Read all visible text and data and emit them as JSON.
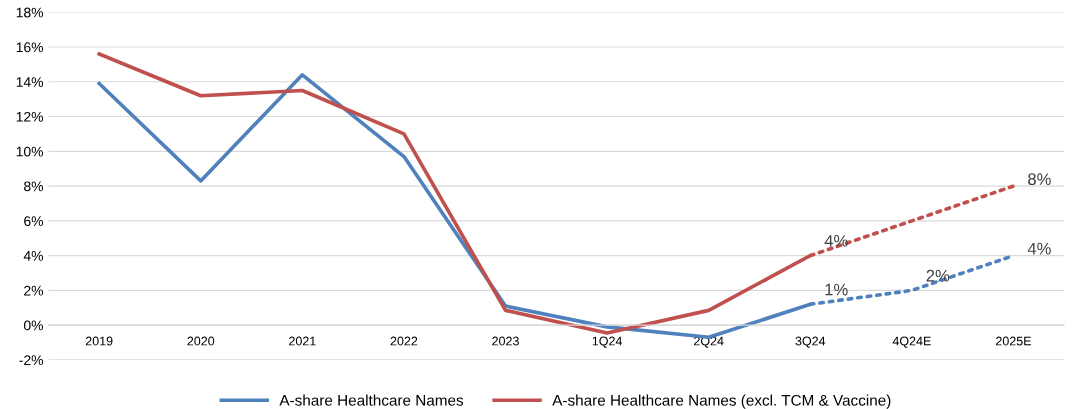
{
  "chart_data": {
    "type": "line",
    "categories": [
      "2019",
      "2020",
      "2021",
      "2022",
      "2023",
      "1Q24",
      "2Q24",
      "3Q24",
      "4Q24E",
      "2025E"
    ],
    "series": [
      {
        "name": "A-share Healthcare Names",
        "color": "#4f81bd",
        "line_style": "solid",
        "values": [
          13.9,
          8.3,
          14.4,
          9.7,
          1.1,
          -0.1,
          -0.7,
          1.2,
          null,
          null
        ]
      },
      {
        "name": "A-share Healthcare Names (excl. TCM & Vaccine)",
        "color": "#c0504d",
        "line_style": "solid",
        "values": [
          15.6,
          13.2,
          13.5,
          11.0,
          0.85,
          -0.45,
          0.85,
          4.0,
          null,
          null
        ]
      },
      {
        "color": "#4f81bd",
        "line_style": "dotted",
        "values": [
          null,
          null,
          null,
          null,
          null,
          null,
          null,
          1.2,
          2.0,
          4.0
        ],
        "value_labels": [
          null,
          null,
          null,
          null,
          null,
          null,
          null,
          "1%",
          "2%",
          "4%"
        ]
      },
      {
        "color": "#c0504d",
        "line_style": "dotted",
        "values": [
          null,
          null,
          null,
          null,
          null,
          null,
          null,
          4.0,
          6.0,
          8.0
        ],
        "value_labels": [
          null,
          null,
          null,
          null,
          null,
          null,
          null,
          "4%",
          null,
          "8%"
        ]
      }
    ],
    "ylim": [
      -2,
      18
    ],
    "yticks": [
      {
        "value": -2,
        "label": "-2%"
      },
      {
        "value": 0,
        "label": "0%"
      },
      {
        "value": 2,
        "label": "2%"
      },
      {
        "value": 4,
        "label": "4%"
      },
      {
        "value": 6,
        "label": "6%"
      },
      {
        "value": 8,
        "label": "8%"
      },
      {
        "value": 10,
        "label": "10%"
      },
      {
        "value": 12,
        "label": "12%"
      },
      {
        "value": 14,
        "label": "14%"
      },
      {
        "value": 16,
        "label": "16%"
      },
      {
        "value": 18,
        "label": "18%"
      }
    ],
    "grid": "y",
    "legend": "bottom",
    "marker": "none"
  }
}
